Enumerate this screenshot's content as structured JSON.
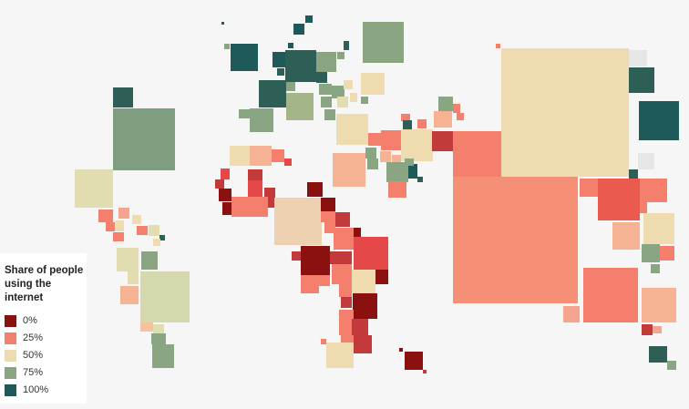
{
  "legend": {
    "title": "Share of people using the internet",
    "items": [
      {
        "label": "0%",
        "color": "#8b1010"
      },
      {
        "label": "25%",
        "color": "#f47f6c"
      },
      {
        "label": "50%",
        "color": "#eedbb0"
      },
      {
        "label": "75%",
        "color": "#8aa582"
      },
      {
        "label": "100%",
        "color": "#1e5a57"
      }
    ]
  }
}
